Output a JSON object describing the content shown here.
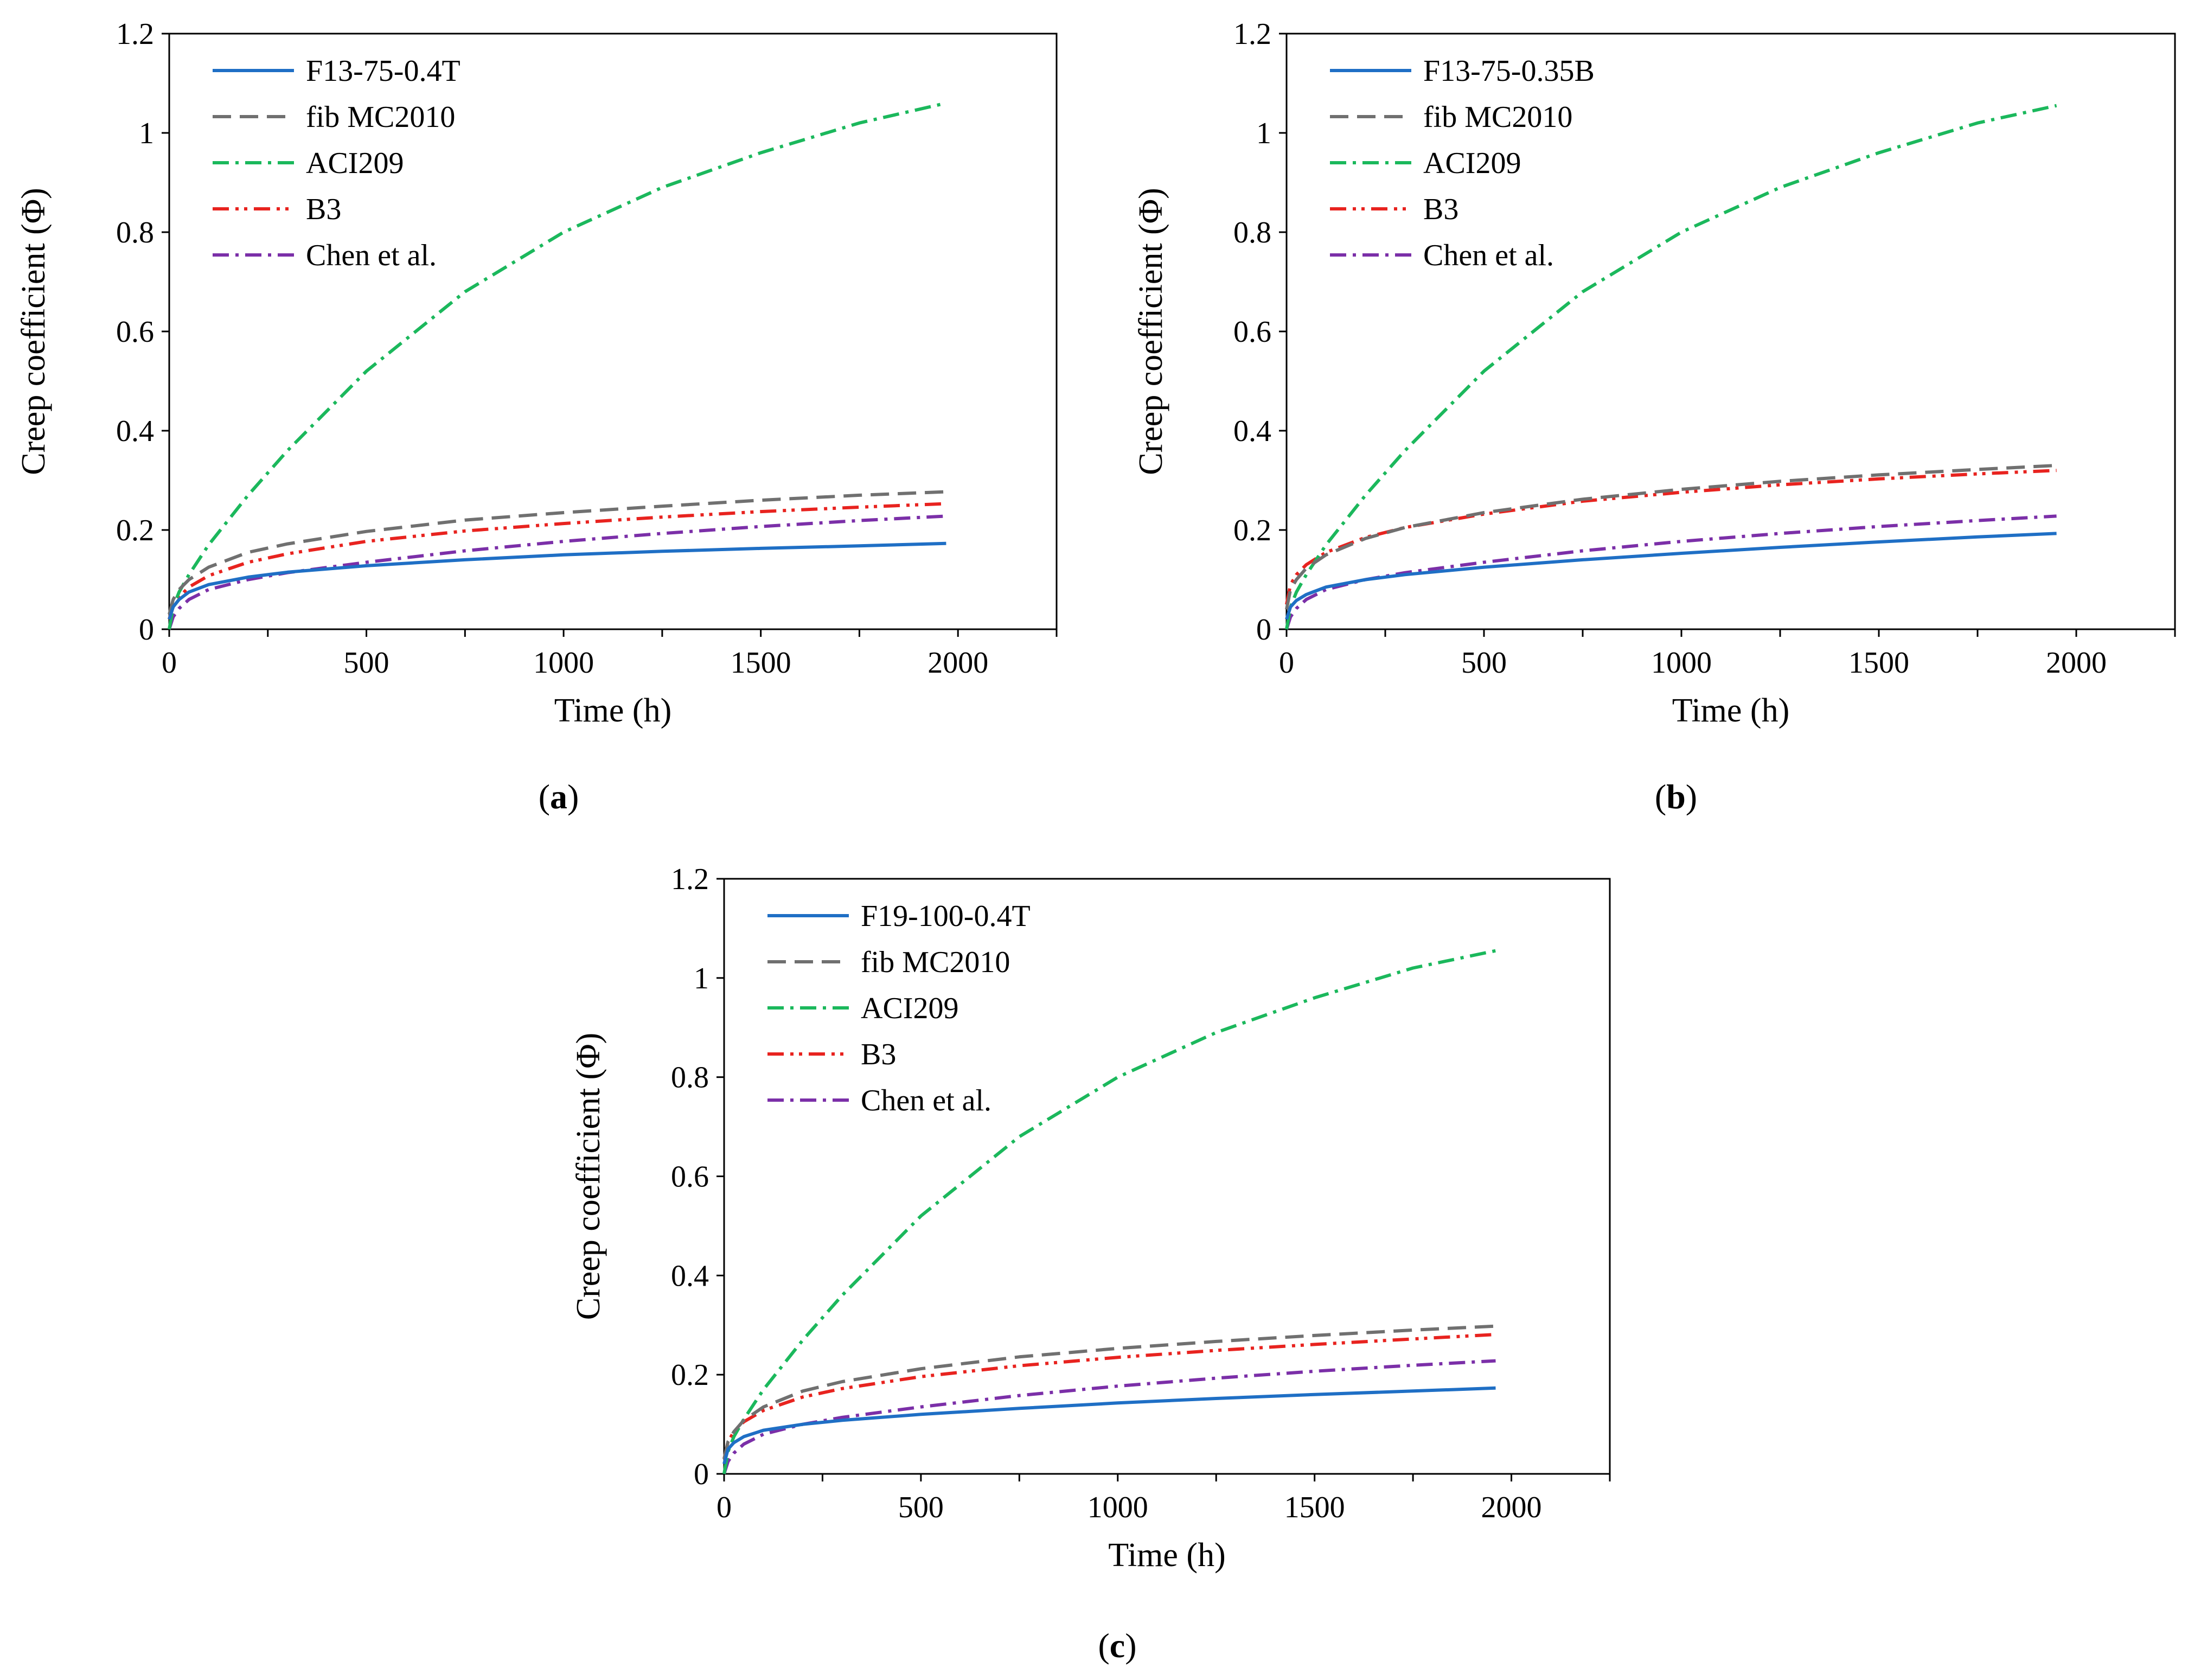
{
  "chart_data": [
    {
      "type": "line",
      "panel": "a",
      "caption": "a",
      "xlabel": "Time (h)",
      "ylabel": "Creep coefficient  (Φ)",
      "xlim": [
        0,
        2250
      ],
      "ylim": [
        0,
        1.2
      ],
      "xticks": [
        0,
        500,
        1000,
        1500,
        2000
      ],
      "yticks": [
        0,
        0.2,
        0.4,
        0.6,
        0.8,
        1,
        1.2
      ],
      "ytick_labels": [
        "0",
        "0.2",
        "0.4",
        "0.6",
        "0.8",
        "1",
        "1.2"
      ],
      "legend_position": "top-left",
      "series": [
        {
          "name": "F13-75-0.4T",
          "color": "#1f6fc5",
          "dash": "solid",
          "x": [
            0,
            10,
            25,
            50,
            100,
            200,
            300,
            500,
            750,
            1000,
            1250,
            1500,
            1750,
            1970
          ],
          "y": [
            0.02,
            0.045,
            0.06,
            0.075,
            0.09,
            0.105,
            0.115,
            0.128,
            0.14,
            0.15,
            0.157,
            0.163,
            0.168,
            0.173
          ]
        },
        {
          "name": "fib MC2010",
          "color": "#707070",
          "dash": "dash",
          "x": [
            0,
            10,
            25,
            50,
            100,
            200,
            300,
            500,
            750,
            1000,
            1250,
            1500,
            1750,
            1970
          ],
          "y": [
            0.03,
            0.06,
            0.08,
            0.1,
            0.125,
            0.155,
            0.172,
            0.197,
            0.22,
            0.235,
            0.248,
            0.26,
            0.27,
            0.277
          ]
        },
        {
          "name": "ACI209",
          "color": "#1bb85c",
          "dash": "dashdot",
          "x": [
            0,
            10,
            25,
            50,
            100,
            200,
            300,
            500,
            750,
            1000,
            1250,
            1500,
            1750,
            1970
          ],
          "y": [
            0.0,
            0.045,
            0.075,
            0.11,
            0.17,
            0.27,
            0.36,
            0.52,
            0.68,
            0.8,
            0.89,
            0.96,
            1.02,
            1.06
          ]
        },
        {
          "name": "B3",
          "color": "#e8231f",
          "dash": "dashdotdot",
          "x": [
            0,
            10,
            25,
            50,
            100,
            200,
            300,
            500,
            750,
            1000,
            1250,
            1500,
            1750,
            1970
          ],
          "y": [
            0.02,
            0.05,
            0.065,
            0.085,
            0.108,
            0.135,
            0.152,
            0.177,
            0.198,
            0.213,
            0.226,
            0.237,
            0.246,
            0.253
          ]
        },
        {
          "name": "Chen et al.",
          "color": "#7b2fa8",
          "dash": "dashdot",
          "x": [
            0,
            10,
            25,
            50,
            100,
            200,
            300,
            500,
            750,
            1000,
            1250,
            1500,
            1750,
            1970
          ],
          "y": [
            0.0,
            0.025,
            0.042,
            0.06,
            0.08,
            0.1,
            0.114,
            0.135,
            0.158,
            0.177,
            0.193,
            0.207,
            0.219,
            0.228
          ]
        }
      ]
    },
    {
      "type": "line",
      "panel": "b",
      "caption": "b",
      "xlabel": "Time (h)",
      "ylabel": "Creep coefficient  (Φ)",
      "xlim": [
        0,
        2250
      ],
      "ylim": [
        0,
        1.2
      ],
      "xticks": [
        0,
        500,
        1000,
        1500,
        2000
      ],
      "yticks": [
        0,
        0.2,
        0.4,
        0.6,
        0.8,
        1,
        1.2
      ],
      "ytick_labels": [
        "0",
        "0.2",
        "0.4",
        "0.6",
        "0.8",
        "1",
        "1.2"
      ],
      "legend_position": "top-left",
      "series": [
        {
          "name": "F13-75-0.35B",
          "color": "#1f6fc5",
          "dash": "solid",
          "x": [
            0,
            10,
            25,
            50,
            100,
            200,
            300,
            500,
            750,
            1000,
            1250,
            1500,
            1750,
            1950
          ],
          "y": [
            0.02,
            0.045,
            0.058,
            0.07,
            0.085,
            0.1,
            0.11,
            0.125,
            0.14,
            0.153,
            0.165,
            0.176,
            0.186,
            0.193
          ]
        },
        {
          "name": "fib MC2010",
          "color": "#707070",
          "dash": "dash",
          "x": [
            0,
            10,
            25,
            50,
            100,
            200,
            300,
            500,
            750,
            1000,
            1250,
            1500,
            1750,
            1950
          ],
          "y": [
            0.04,
            0.08,
            0.1,
            0.123,
            0.15,
            0.183,
            0.205,
            0.235,
            0.262,
            0.282,
            0.298,
            0.311,
            0.322,
            0.33
          ]
        },
        {
          "name": "ACI209",
          "color": "#1bb85c",
          "dash": "dashdot",
          "x": [
            0,
            10,
            25,
            50,
            100,
            200,
            300,
            500,
            750,
            1000,
            1250,
            1500,
            1750,
            1950
          ],
          "y": [
            0.0,
            0.045,
            0.075,
            0.11,
            0.17,
            0.27,
            0.36,
            0.52,
            0.68,
            0.8,
            0.89,
            0.96,
            1.02,
            1.055
          ]
        },
        {
          "name": "B3",
          "color": "#e8231f",
          "dash": "dashdotdot",
          "x": [
            0,
            10,
            25,
            50,
            100,
            200,
            300,
            500,
            750,
            1000,
            1250,
            1500,
            1750,
            1950
          ],
          "y": [
            0.05,
            0.09,
            0.11,
            0.13,
            0.155,
            0.185,
            0.205,
            0.232,
            0.258,
            0.276,
            0.291,
            0.303,
            0.313,
            0.32
          ]
        },
        {
          "name": "Chen et al.",
          "color": "#7b2fa8",
          "dash": "dashdot",
          "x": [
            0,
            10,
            25,
            50,
            100,
            200,
            300,
            500,
            750,
            1000,
            1250,
            1500,
            1750,
            1950
          ],
          "y": [
            0.0,
            0.025,
            0.042,
            0.06,
            0.08,
            0.1,
            0.114,
            0.135,
            0.158,
            0.177,
            0.193,
            0.207,
            0.219,
            0.228
          ]
        }
      ]
    },
    {
      "type": "line",
      "panel": "c",
      "caption": "c",
      "xlabel": "Time (h)",
      "ylabel": "Creep coefficient  (Φ)",
      "xlim": [
        0,
        2250
      ],
      "ylim": [
        0,
        1.2
      ],
      "xticks": [
        0,
        500,
        1000,
        1500,
        2000
      ],
      "yticks": [
        0,
        0.2,
        0.4,
        0.6,
        0.8,
        1,
        1.2
      ],
      "ytick_labels": [
        "0",
        "0.2",
        "0.4",
        "0.6",
        "0.8",
        "1",
        "1.2"
      ],
      "legend_position": "top-left",
      "series": [
        {
          "name": "F19-100-0.4T",
          "color": "#1f6fc5",
          "dash": "solid",
          "x": [
            0,
            10,
            25,
            50,
            100,
            200,
            300,
            500,
            750,
            1000,
            1250,
            1500,
            1750,
            1960
          ],
          "y": [
            0.02,
            0.05,
            0.063,
            0.075,
            0.088,
            0.1,
            0.108,
            0.12,
            0.132,
            0.143,
            0.152,
            0.16,
            0.167,
            0.173
          ]
        },
        {
          "name": "fib MC2010",
          "color": "#707070",
          "dash": "dash",
          "x": [
            0,
            10,
            25,
            50,
            100,
            200,
            300,
            500,
            750,
            1000,
            1250,
            1500,
            1750,
            1960
          ],
          "y": [
            0.03,
            0.065,
            0.085,
            0.108,
            0.135,
            0.167,
            0.186,
            0.212,
            0.236,
            0.253,
            0.267,
            0.279,
            0.29,
            0.298
          ]
        },
        {
          "name": "ACI209",
          "color": "#1bb85c",
          "dash": "dashdot",
          "x": [
            0,
            10,
            25,
            50,
            100,
            200,
            300,
            500,
            750,
            1000,
            1250,
            1500,
            1750,
            1960
          ],
          "y": [
            0.0,
            0.045,
            0.075,
            0.11,
            0.17,
            0.27,
            0.36,
            0.52,
            0.68,
            0.8,
            0.89,
            0.96,
            1.02,
            1.055
          ]
        },
        {
          "name": "B3",
          "color": "#e8231f",
          "dash": "dashdotdot",
          "x": [
            0,
            10,
            25,
            50,
            100,
            200,
            300,
            500,
            750,
            1000,
            1250,
            1500,
            1750,
            1960
          ],
          "y": [
            0.03,
            0.065,
            0.085,
            0.105,
            0.128,
            0.155,
            0.172,
            0.196,
            0.218,
            0.235,
            0.249,
            0.261,
            0.272,
            0.281
          ]
        },
        {
          "name": "Chen et al.",
          "color": "#7b2fa8",
          "dash": "dashdot",
          "x": [
            0,
            10,
            25,
            50,
            100,
            200,
            300,
            500,
            750,
            1000,
            1250,
            1500,
            1750,
            1960
          ],
          "y": [
            0.0,
            0.025,
            0.042,
            0.06,
            0.08,
            0.1,
            0.114,
            0.135,
            0.158,
            0.177,
            0.193,
            0.207,
            0.219,
            0.228
          ]
        }
      ]
    }
  ]
}
